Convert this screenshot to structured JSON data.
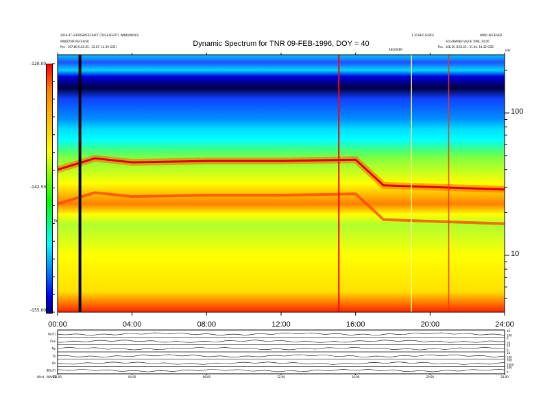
{
  "header": {
    "title": "Dynamic Spectrum for TNR 09-FEB-1996, DOY = 40",
    "left_line1": "2020-07 GOODSPACECRAFT (TDS-EXCEPT): WIND/WAVES",
    "left_line2": "WIND/TNR RECEIVER",
    "left_line3": "Pos : 167.80 (163.65, -32.67, 14.39 GSE)",
    "mid_label": "RECEIVER",
    "right_line1": "1.10 BEO SURCE",
    "right_line2": "WIND RECEIVER",
    "right_line3": "SOLARWIND VALUE TIME: 24:00",
    "right_line4": "Pos : 168.20 (163.65, -31.40, 14.32 GSE)",
    "corner_unit": "kHz"
  },
  "colorbar": {
    "ticks": [
      "-120.00",
      "-142.50",
      "-155.00"
    ],
    "label": "TNR",
    "colors": [
      "#ff0000",
      "#ffff00",
      "#00ff00",
      "#00ffff",
      "#0000ff",
      "#000080"
    ]
  },
  "chart_data": {
    "type": "heatmap",
    "title": "Dynamic Spectrum for TNR 09-FEB-1996, DOY = 40",
    "x_tick_labels": [
      "00:00",
      "04:00",
      "08:00",
      "12:00",
      "16:00",
      "20:00",
      "24:00"
    ],
    "x_range_hours": [
      0,
      24
    ],
    "y_tick_labels": [
      "100",
      "10"
    ],
    "y_scale": "log",
    "colorscale_range": [
      -155.0,
      -120.0
    ],
    "colorbar_ticks": [
      -120.0,
      -142.5,
      -155.0
    ],
    "approx_features": {
      "plasma_line_kHz": [
        {
          "t": 0,
          "f": 40
        },
        {
          "t": 2,
          "f": 48
        },
        {
          "t": 4,
          "f": 45
        },
        {
          "t": 8,
          "f": 46
        },
        {
          "t": 12,
          "f": 46
        },
        {
          "t": 16,
          "f": 47
        },
        {
          "t": 17.5,
          "f": 31
        },
        {
          "t": 24,
          "f": 29
        }
      ]
    }
  },
  "bottom_panel": {
    "row_labels": [
      "B(nT)",
      "Vsw",
      "Np",
      "Tp",
      "Bz",
      "|B|(nT)"
    ],
    "row_values": [
      [
        "10",
        "100"
      ],
      [
        "0",
        "10"
      ],
      [
        "10",
        "0"
      ],
      [
        "10",
        "100"
      ],
      [
        "100",
        "1000"
      ],
      [
        "100",
        "0"
      ]
    ],
    "x_tick_labels": [
      "00:00",
      "04:00",
      "08:00",
      "12:00",
      "16:00",
      "20:00",
      "24:00"
    ],
    "footer": "Wind - WAVES"
  }
}
